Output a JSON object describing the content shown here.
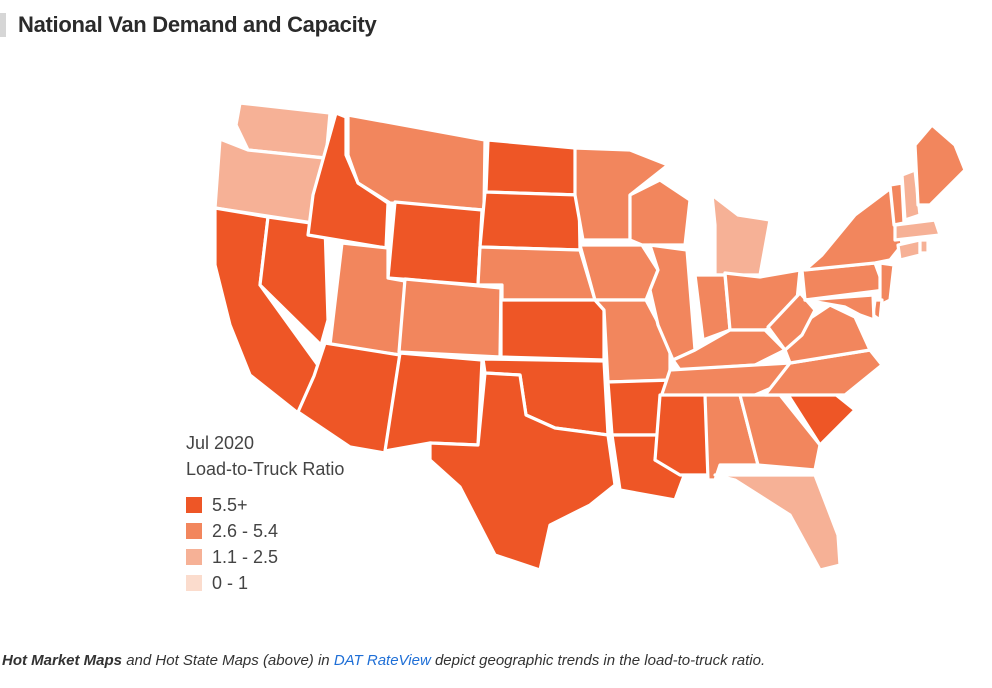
{
  "title": "National Van Demand and Capacity",
  "legend": {
    "period": "Jul 2020",
    "metric": "Load-to-Truck Ratio",
    "items": [
      {
        "label": "5.5+",
        "color": "#ee5626"
      },
      {
        "label": "2.6 - 5.4",
        "color": "#f2865d"
      },
      {
        "label": "1.1 - 2.5",
        "color": "#f6b196"
      },
      {
        "label": "0 - 1",
        "color": "#fbdccd"
      }
    ]
  },
  "caption": {
    "part1": "Hot Market Maps",
    "part2": " and Hot State Maps (above) in ",
    "link": "DAT RateView",
    "part3": " depict geographic trends in the load-to-truck ratio."
  },
  "map_data": {
    "classes": {
      "WA": "1.1 - 2.5",
      "OR": "1.1 - 2.5",
      "CA": "5.5+",
      "NV": "5.5+",
      "ID": "5.5+",
      "MT": "2.6 - 5.4",
      "WY": "5.5+",
      "UT": "2.6 - 5.4",
      "AZ": "5.5+",
      "CO": "2.6 - 5.4",
      "NM": "5.5+",
      "ND": "5.5+",
      "SD": "5.5+",
      "NE": "2.6 - 5.4",
      "KS": "5.5+",
      "OK": "5.5+",
      "TX": "5.5+",
      "MN": "2.6 - 5.4",
      "IA": "2.6 - 5.4",
      "MO": "2.6 - 5.4",
      "AR": "5.5+",
      "LA": "5.5+",
      "WI": "2.6 - 5.4",
      "IL": "2.6 - 5.4",
      "MI": "1.1 - 2.5",
      "IN": "2.6 - 5.4",
      "OH": "2.6 - 5.4",
      "KY": "2.6 - 5.4",
      "TN": "2.6 - 5.4",
      "MS": "5.5+",
      "AL": "2.6 - 5.4",
      "GA": "2.6 - 5.4",
      "FL": "1.1 - 2.5",
      "SC": "5.5+",
      "NC": "2.6 - 5.4",
      "VA": "2.6 - 5.4",
      "WV": "2.6 - 5.4",
      "PA": "2.6 - 5.4",
      "NY": "2.6 - 5.4",
      "NJ": "2.6 - 5.4",
      "DE": "2.6 - 5.4",
      "MD": "2.6 - 5.4",
      "CT": "1.1 - 2.5",
      "RI": "1.1 - 2.5",
      "MA": "1.1 - 2.5",
      "VT": "2.6 - 5.4",
      "NH": "1.1 - 2.5",
      "ME": "2.6 - 5.4"
    }
  }
}
